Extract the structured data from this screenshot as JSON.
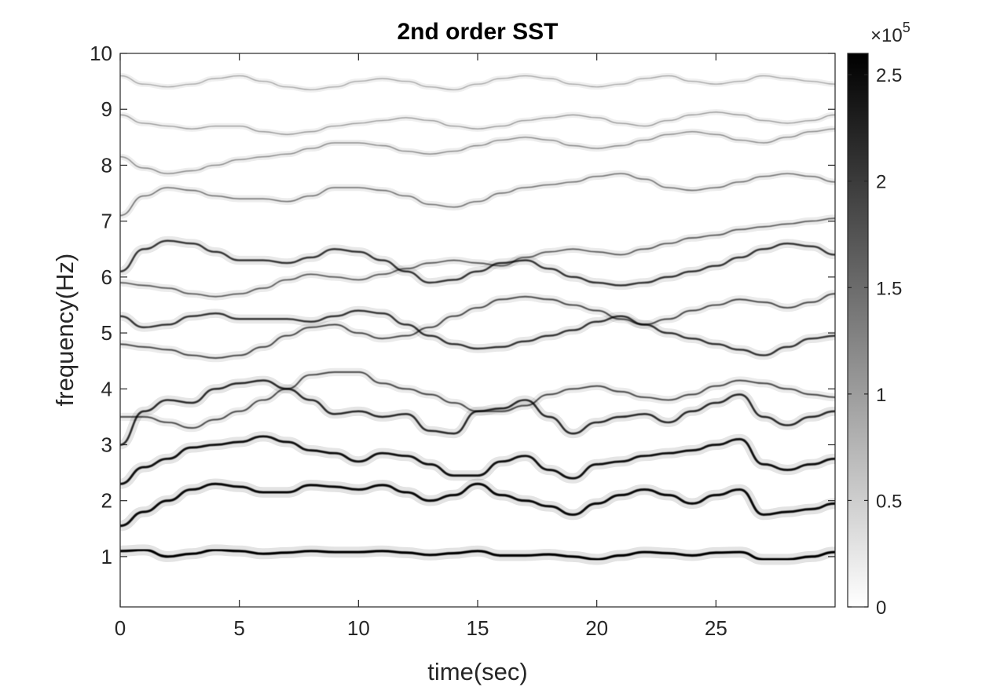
{
  "chart_data": {
    "type": "heatmap",
    "title": "2nd order SST",
    "xlabel": "time(sec)",
    "ylabel": "frequency(Hz)",
    "xlim": [
      0,
      30
    ],
    "ylim": [
      0.1,
      10
    ],
    "xticks": [
      0,
      5,
      10,
      15,
      20,
      25
    ],
    "yticks": [
      1,
      2,
      3,
      4,
      5,
      6,
      7,
      8,
      9,
      10
    ],
    "grid": false,
    "colormap": "gray-reversed",
    "colorbar": {
      "range": [
        0,
        260000
      ],
      "ticks": [
        0,
        0.5,
        1,
        1.5,
        2,
        2.5
      ],
      "tick_labels": [
        "0",
        "0.5",
        "1",
        "1.5",
        "2",
        "2.5"
      ],
      "exponent_label": "×10",
      "exponent_power": "5",
      "low_color": "#ffffff",
      "high_color": "#000000"
    },
    "ridges": [
      {
        "strength": 1.0,
        "t": [
          0,
          1,
          2,
          3,
          4,
          5,
          6,
          7,
          8,
          9,
          10,
          11,
          12,
          13,
          14,
          15,
          16,
          17,
          18,
          19,
          20,
          21,
          22,
          23,
          24,
          25,
          26,
          27,
          28,
          29,
          30
        ],
        "f": [
          1.1,
          1.12,
          1.0,
          1.05,
          1.12,
          1.1,
          1.05,
          1.07,
          1.1,
          1.08,
          1.08,
          1.1,
          1.07,
          1.03,
          1.06,
          1.1,
          1.02,
          1.02,
          1.04,
          1.0,
          0.95,
          1.02,
          1.08,
          1.06,
          1.02,
          1.07,
          1.08,
          0.95,
          0.95,
          1.0,
          1.08
        ]
      },
      {
        "strength": 0.95,
        "t": [
          0,
          1,
          2,
          3,
          4,
          5,
          6,
          7,
          8,
          9,
          10,
          11,
          12,
          13,
          14,
          15,
          16,
          17,
          18,
          19,
          20,
          21,
          22,
          23,
          24,
          25,
          26,
          27,
          28,
          29,
          30
        ],
        "f": [
          1.55,
          1.8,
          2.0,
          2.2,
          2.3,
          2.25,
          2.15,
          2.15,
          2.28,
          2.25,
          2.2,
          2.28,
          2.15,
          2.0,
          2.1,
          2.3,
          2.1,
          2.0,
          1.9,
          1.75,
          1.95,
          2.1,
          2.2,
          2.1,
          1.95,
          2.1,
          2.2,
          1.75,
          1.8,
          1.85,
          1.95
        ]
      },
      {
        "strength": 0.9,
        "t": [
          0,
          1,
          2,
          3,
          4,
          5,
          6,
          7,
          8,
          9,
          10,
          11,
          12,
          13,
          14,
          15,
          16,
          17,
          18,
          19,
          20,
          21,
          22,
          23,
          24,
          25,
          26,
          27,
          28,
          29,
          30
        ],
        "f": [
          2.3,
          2.6,
          2.75,
          2.95,
          3.0,
          3.05,
          3.15,
          3.05,
          2.9,
          2.85,
          2.7,
          2.85,
          2.8,
          2.65,
          2.45,
          2.45,
          2.7,
          2.8,
          2.55,
          2.4,
          2.65,
          2.7,
          2.8,
          2.85,
          2.9,
          3.0,
          3.1,
          2.65,
          2.55,
          2.65,
          2.75
        ]
      },
      {
        "strength": 0.75,
        "t": [
          0,
          1,
          2,
          3,
          4,
          5,
          6,
          7,
          8,
          9,
          10,
          11,
          12,
          13,
          14,
          15,
          16,
          17,
          18,
          19,
          20,
          21,
          22,
          23,
          24,
          25,
          26,
          27,
          28,
          29,
          30
        ],
        "f": [
          3.0,
          3.6,
          3.8,
          3.75,
          4.0,
          4.1,
          4.15,
          4.0,
          3.8,
          3.55,
          3.6,
          3.5,
          3.55,
          3.25,
          3.2,
          3.6,
          3.65,
          3.8,
          3.5,
          3.2,
          3.4,
          3.5,
          3.55,
          3.4,
          3.6,
          3.75,
          3.9,
          3.5,
          3.35,
          3.5,
          3.6
        ]
      },
      {
        "strength": 0.55,
        "t": [
          0,
          1,
          2,
          3,
          4,
          5,
          6,
          7,
          8,
          9,
          10,
          11,
          12,
          13,
          14,
          15,
          16,
          17,
          18,
          19,
          20,
          21,
          22,
          23,
          24,
          25,
          26,
          27,
          28,
          29,
          30
        ],
        "f": [
          3.5,
          3.5,
          3.4,
          3.3,
          3.45,
          3.6,
          3.8,
          4.0,
          4.25,
          4.3,
          4.3,
          4.1,
          4.0,
          3.9,
          3.75,
          3.6,
          3.6,
          3.7,
          3.9,
          4.0,
          4.05,
          3.95,
          3.85,
          3.8,
          3.9,
          4.05,
          4.15,
          4.1,
          4.0,
          3.9,
          3.85
        ]
      },
      {
        "strength": 0.7,
        "t": [
          0,
          1,
          2,
          3,
          4,
          5,
          6,
          7,
          8,
          9,
          10,
          11,
          12,
          13,
          14,
          15,
          16,
          17,
          18,
          19,
          20,
          21,
          22,
          23,
          24,
          25,
          26,
          27,
          28,
          29,
          30
        ],
        "f": [
          5.3,
          5.1,
          5.15,
          5.3,
          5.35,
          5.25,
          5.25,
          5.25,
          5.2,
          5.3,
          5.4,
          5.35,
          5.15,
          4.95,
          4.8,
          4.72,
          4.75,
          4.85,
          4.95,
          5.05,
          5.2,
          5.3,
          5.15,
          5.0,
          4.9,
          4.8,
          4.7,
          4.6,
          4.75,
          4.9,
          4.95
        ]
      },
      {
        "strength": 0.55,
        "t": [
          0,
          1,
          2,
          3,
          4,
          5,
          6,
          7,
          8,
          9,
          10,
          11,
          12,
          13,
          14,
          15,
          16,
          17,
          18,
          19,
          20,
          21,
          22,
          23,
          24,
          25,
          26,
          27,
          28,
          29,
          30
        ],
        "f": [
          4.8,
          4.75,
          4.7,
          4.6,
          4.55,
          4.6,
          4.75,
          4.95,
          5.1,
          5.15,
          5.0,
          4.9,
          4.95,
          5.1,
          5.3,
          5.45,
          5.6,
          5.65,
          5.6,
          5.5,
          5.4,
          5.25,
          5.15,
          5.25,
          5.4,
          5.5,
          5.6,
          5.55,
          5.45,
          5.55,
          5.7
        ]
      },
      {
        "strength": 0.7,
        "t": [
          0,
          1,
          2,
          3,
          4,
          5,
          6,
          7,
          8,
          9,
          10,
          11,
          12,
          13,
          14,
          15,
          16,
          17,
          18,
          19,
          20,
          21,
          22,
          23,
          24,
          25,
          26,
          27,
          28,
          29,
          30
        ],
        "f": [
          6.1,
          6.5,
          6.65,
          6.6,
          6.45,
          6.3,
          6.3,
          6.25,
          6.35,
          6.5,
          6.45,
          6.3,
          6.1,
          5.9,
          5.95,
          6.1,
          6.25,
          6.3,
          6.15,
          6.0,
          5.9,
          5.85,
          5.9,
          6.0,
          6.1,
          6.2,
          6.35,
          6.5,
          6.6,
          6.55,
          6.4
        ]
      },
      {
        "strength": 0.45,
        "t": [
          0,
          1,
          2,
          3,
          4,
          5,
          6,
          7,
          8,
          9,
          10,
          11,
          12,
          13,
          14,
          15,
          16,
          17,
          18,
          19,
          20,
          21,
          22,
          23,
          24,
          25,
          26,
          27,
          28,
          29,
          30
        ],
        "f": [
          5.9,
          5.85,
          5.8,
          5.7,
          5.65,
          5.7,
          5.8,
          5.95,
          6.05,
          6.0,
          5.95,
          6.05,
          6.15,
          6.25,
          6.3,
          6.25,
          6.2,
          6.35,
          6.45,
          6.5,
          6.45,
          6.4,
          6.5,
          6.6,
          6.7,
          6.75,
          6.85,
          6.9,
          6.95,
          7.0,
          7.05
        ]
      },
      {
        "strength": 0.35,
        "t": [
          0,
          1,
          2,
          3,
          4,
          5,
          6,
          7,
          8,
          9,
          10,
          11,
          12,
          13,
          14,
          15,
          16,
          17,
          18,
          19,
          20,
          21,
          22,
          23,
          24,
          25,
          26,
          27,
          28,
          29,
          30
        ],
        "f": [
          7.1,
          7.45,
          7.6,
          7.55,
          7.45,
          7.4,
          7.4,
          7.35,
          7.45,
          7.6,
          7.6,
          7.55,
          7.45,
          7.3,
          7.25,
          7.35,
          7.5,
          7.6,
          7.65,
          7.7,
          7.8,
          7.85,
          7.75,
          7.6,
          7.55,
          7.6,
          7.7,
          7.8,
          7.85,
          7.8,
          7.7
        ]
      },
      {
        "strength": 0.25,
        "t": [
          0,
          1,
          2,
          3,
          4,
          5,
          6,
          7,
          8,
          9,
          10,
          11,
          12,
          13,
          14,
          15,
          16,
          17,
          18,
          19,
          20,
          21,
          22,
          23,
          24,
          25,
          26,
          27,
          28,
          29,
          30
        ],
        "f": [
          8.15,
          7.95,
          7.85,
          7.9,
          8.0,
          8.1,
          8.15,
          8.2,
          8.3,
          8.4,
          8.4,
          8.35,
          8.25,
          8.2,
          8.25,
          8.35,
          8.45,
          8.5,
          8.45,
          8.35,
          8.3,
          8.35,
          8.45,
          8.55,
          8.6,
          8.55,
          8.45,
          8.4,
          8.5,
          8.6,
          8.65
        ]
      },
      {
        "strength": 0.2,
        "t": [
          0,
          1,
          2,
          3,
          4,
          5,
          6,
          7,
          8,
          9,
          10,
          11,
          12,
          13,
          14,
          15,
          16,
          17,
          18,
          19,
          20,
          21,
          22,
          23,
          24,
          25,
          26,
          27,
          28,
          29,
          30
        ],
        "f": [
          8.9,
          8.75,
          8.7,
          8.65,
          8.7,
          8.7,
          8.6,
          8.55,
          8.6,
          8.7,
          8.75,
          8.8,
          8.85,
          8.8,
          8.7,
          8.65,
          8.7,
          8.8,
          8.85,
          8.9,
          8.85,
          8.75,
          8.7,
          8.8,
          8.9,
          8.95,
          8.9,
          8.8,
          8.75,
          8.8,
          8.9
        ]
      },
      {
        "strength": 0.15,
        "t": [
          0,
          1,
          2,
          3,
          4,
          5,
          6,
          7,
          8,
          9,
          10,
          11,
          12,
          13,
          14,
          15,
          16,
          17,
          18,
          19,
          20,
          21,
          22,
          23,
          24,
          25,
          26,
          27,
          28,
          29,
          30
        ],
        "f": [
          9.6,
          9.45,
          9.4,
          9.45,
          9.55,
          9.6,
          9.5,
          9.4,
          9.35,
          9.4,
          9.5,
          9.55,
          9.5,
          9.4,
          9.35,
          9.45,
          9.55,
          9.6,
          9.55,
          9.45,
          9.4,
          9.45,
          9.55,
          9.6,
          9.5,
          9.45,
          9.5,
          9.6,
          9.55,
          9.5,
          9.45
        ]
      }
    ]
  }
}
